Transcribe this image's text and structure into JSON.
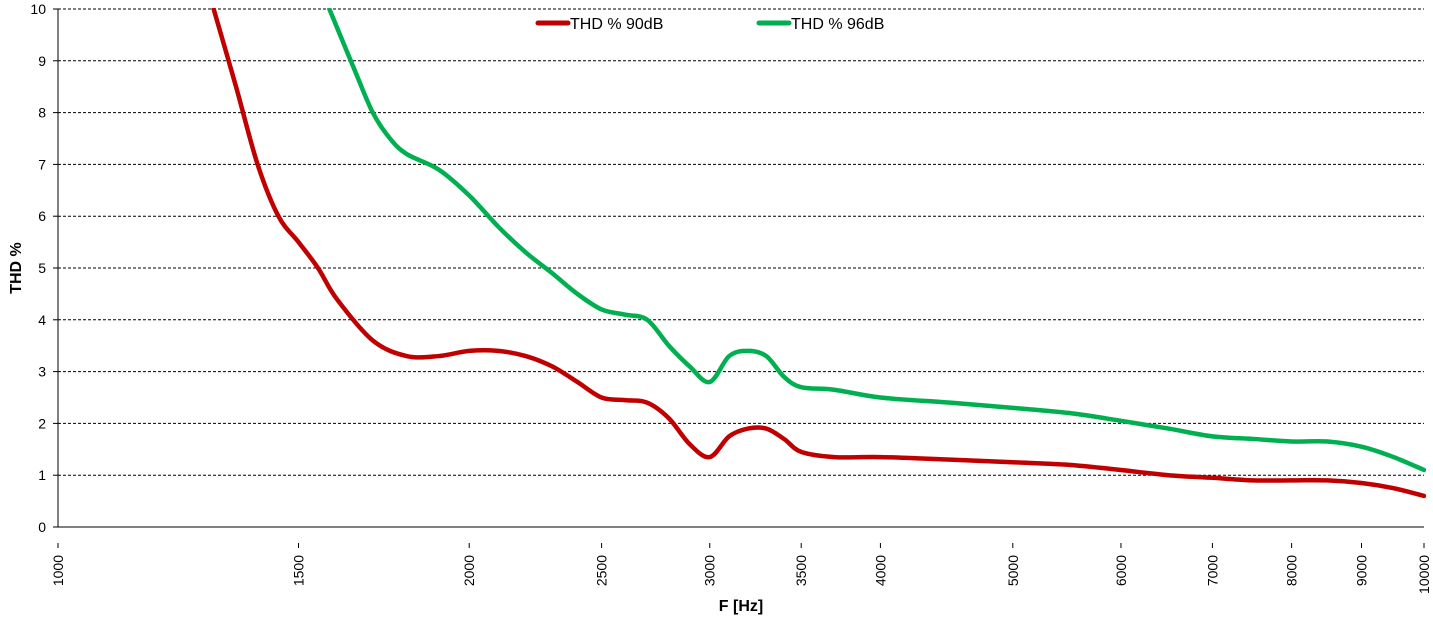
{
  "chart_data": {
    "type": "line",
    "title": "",
    "xlabel": "F [Hz]",
    "ylabel": "THD %",
    "x_scale": "log",
    "xlim": [
      1000,
      10000
    ],
    "ylim": [
      0,
      10
    ],
    "x_ticks": [
      1000,
      1500,
      2000,
      2500,
      3000,
      3500,
      4000,
      5000,
      6000,
      7000,
      8000,
      9000,
      10000
    ],
    "x_tick_labels": [
      "1000",
      "1500",
      "2000",
      "2500",
      "3000",
      "3500",
      "4000",
      "5000",
      "6000",
      "7000",
      "8000",
      "9000",
      "10000"
    ],
    "y_ticks": [
      0,
      1,
      2,
      3,
      4,
      5,
      6,
      7,
      8,
      9,
      10
    ],
    "y_tick_labels": [
      "0",
      "1",
      "2",
      "3",
      "4",
      "5",
      "6",
      "7",
      "8",
      "9",
      "10"
    ],
    "grid": "horizontal-dashed",
    "legend_position": "top-center",
    "series": [
      {
        "name": "THD % 90dB",
        "color": "#c00000",
        "x": [
          1300,
          1350,
          1400,
          1450,
          1500,
          1550,
          1600,
          1700,
          1800,
          1900,
          2000,
          2100,
          2200,
          2300,
          2400,
          2500,
          2600,
          2700,
          2800,
          2900,
          3000,
          3100,
          3200,
          3300,
          3400,
          3500,
          3700,
          4000,
          4500,
          5000,
          5500,
          6000,
          6500,
          7000,
          7500,
          8000,
          8500,
          9000,
          9500,
          10000
        ],
        "y": [
          10.0,
          8.5,
          7.0,
          6.0,
          5.5,
          5.0,
          4.4,
          3.6,
          3.3,
          3.3,
          3.4,
          3.4,
          3.3,
          3.1,
          2.8,
          2.5,
          2.45,
          2.4,
          2.1,
          1.6,
          1.35,
          1.75,
          1.9,
          1.9,
          1.7,
          1.45,
          1.35,
          1.35,
          1.3,
          1.25,
          1.2,
          1.1,
          1.0,
          0.95,
          0.9,
          0.9,
          0.9,
          0.85,
          0.75,
          0.6
        ]
      },
      {
        "name": "THD % 96dB",
        "color": "#00b050",
        "x": [
          1580,
          1650,
          1700,
          1750,
          1800,
          1900,
          2000,
          2100,
          2200,
          2300,
          2400,
          2500,
          2600,
          2700,
          2800,
          2900,
          3000,
          3100,
          3200,
          3300,
          3400,
          3500,
          3700,
          4000,
          4500,
          5000,
          5500,
          6000,
          6500,
          7000,
          7500,
          8000,
          8500,
          9000,
          9500,
          10000
        ],
        "y": [
          10.0,
          8.8,
          8.0,
          7.5,
          7.2,
          6.9,
          6.4,
          5.8,
          5.3,
          4.9,
          4.5,
          4.2,
          4.1,
          4.0,
          3.5,
          3.1,
          2.8,
          3.3,
          3.4,
          3.3,
          2.9,
          2.7,
          2.65,
          2.5,
          2.4,
          2.3,
          2.2,
          2.05,
          1.9,
          1.75,
          1.7,
          1.65,
          1.65,
          1.55,
          1.35,
          1.1
        ]
      }
    ]
  }
}
